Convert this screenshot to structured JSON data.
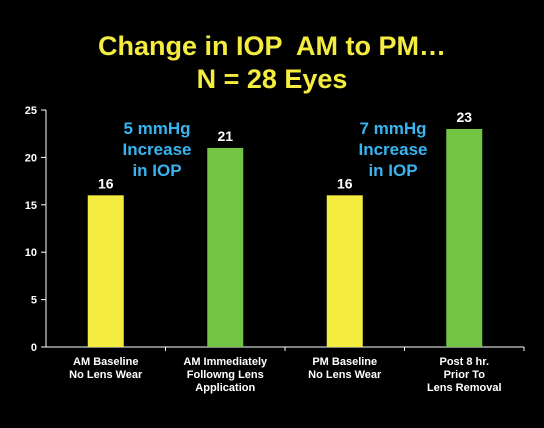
{
  "title": {
    "line1": "Change in IOP  AM to PM…",
    "line2": "N = 28 Eyes"
  },
  "colors": {
    "background": "#000000",
    "title": "#f4ec3e",
    "axis_text": "#ffffff",
    "note_text": "#38b4f0",
    "bar_yellow": "#f4ec3e",
    "bar_green": "#72c442"
  },
  "chart_data": {
    "type": "bar",
    "title": "Change in IOP  AM to PM… N = 28 Eyes",
    "xlabel": "",
    "ylabel": "",
    "ylim": [
      0,
      25
    ],
    "yticks": [
      0,
      5,
      10,
      15,
      20,
      25
    ],
    "grid": false,
    "categories": [
      [
        "AM Baseline",
        "No Lens Wear"
      ],
      [
        "AM Immediately",
        "Followng Lens",
        "Application"
      ],
      [
        "PM Baseline",
        "No Lens Wear"
      ],
      [
        "Post 8 hr.",
        "Prior To",
        "Lens Removal"
      ]
    ],
    "values": [
      16,
      21,
      16,
      23
    ],
    "bar_colors": [
      "#f4ec3e",
      "#72c442",
      "#f4ec3e",
      "#72c442"
    ],
    "data_labels": [
      "16",
      "21",
      "16",
      "23"
    ],
    "annotations": [
      {
        "lines": [
          "5 mmHg",
          "Increase",
          "in IOP"
        ]
      },
      {
        "lines": [
          "7 mmHg",
          "Increase",
          "in IOP"
        ]
      }
    ]
  }
}
